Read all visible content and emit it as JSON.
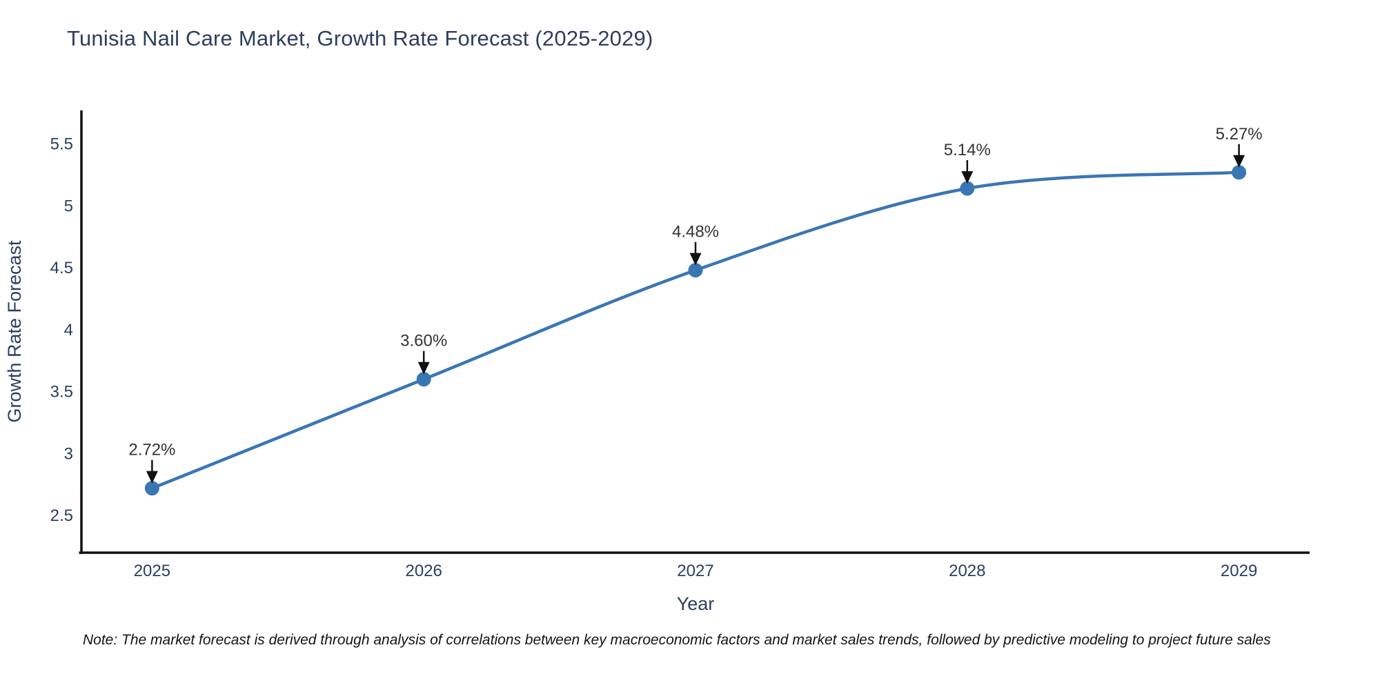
{
  "chart_data": {
    "type": "line",
    "title": "Tunisia Nail Care Market, Growth Rate Forecast (2025-2029)",
    "xlabel": "Year",
    "ylabel": "Growth Rate Forecast",
    "x": [
      2025,
      2026,
      2027,
      2028,
      2029
    ],
    "xtick_labels": [
      "2025",
      "2026",
      "2027",
      "2028",
      "2029"
    ],
    "series": [
      {
        "name": "Growth Rate Forecast",
        "values": [
          2.72,
          3.6,
          4.48,
          5.14,
          5.27
        ]
      }
    ],
    "point_labels": [
      "2.72%",
      "3.60%",
      "4.48%",
      "5.14%",
      "5.27%"
    ],
    "yticks": [
      2.5,
      3,
      3.5,
      4,
      4.5,
      5,
      5.5
    ],
    "ytick_labels": [
      "2.5",
      "3",
      "3.5",
      "4",
      "4.5",
      "5",
      "5.5"
    ],
    "xlim": [
      2024.74,
      2029.26
    ],
    "ylim": [
      2.2,
      5.77
    ],
    "grid": false,
    "legend": false,
    "line_shape": "spline",
    "colors": {
      "line": "#3a76b4",
      "marker": "#3a76b4",
      "axis": "#111111",
      "tick_text": "#2a3f5f",
      "axis_title_text": "#2a3f5f",
      "annotation_text": "#333333",
      "annotation_arrow": "#111111",
      "title_text": "#2d3e5f",
      "note_text": "#141414",
      "background": "#ffffff"
    }
  },
  "footnote": {
    "text": "Note: The market forecast is derived through analysis of correlations between key macroeconomic factors and market sales trends, followed by predictive modeling to project future sales"
  }
}
